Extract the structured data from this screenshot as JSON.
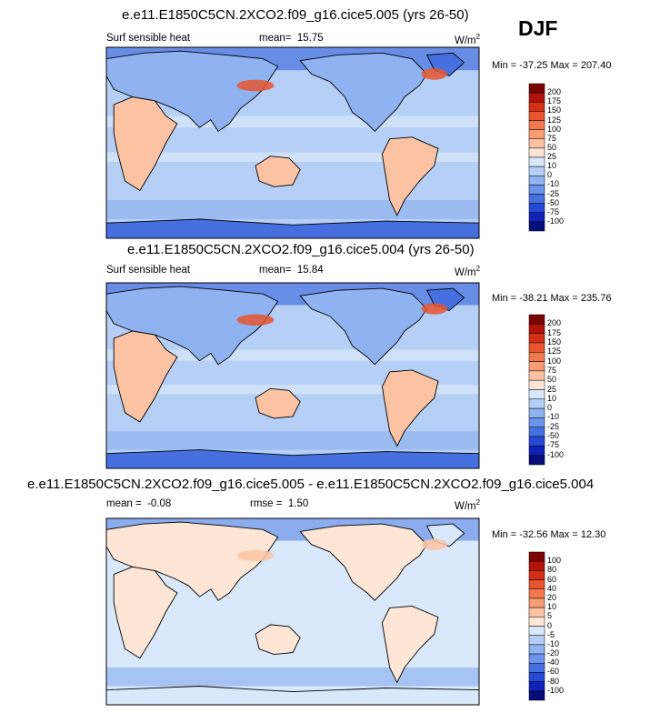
{
  "header": {
    "season": "DJF"
  },
  "chart_data": [
    {
      "type": "heatmap",
      "title": "e.e11.E1850C5CN.2XCO2.f09_g16.cice5.005 (yrs 26-50)",
      "field_label": "Surf sensible heat",
      "stat_label": "mean=",
      "stat_value": "15.75",
      "units": "W/m",
      "units_exp": "2",
      "min_max": "Min = -37.25 Max = 207.40",
      "colorbar": {
        "ticks": [
          "200",
          "175",
          "150",
          "125",
          "100",
          "75",
          "50",
          "25",
          "10",
          "0",
          "-10",
          "-25",
          "-50",
          "-75",
          "-100"
        ],
        "colors": [
          "#7a0403",
          "#b1120a",
          "#d42f14",
          "#e8552e",
          "#f3794d",
          "#f89c74",
          "#fbc3a3",
          "#fde6d5",
          "#d9e8fb",
          "#b6cff6",
          "#8eb3f0",
          "#6a93e9",
          "#4670e0",
          "#2548d6",
          "#0e22b8",
          "#040d7a"
        ]
      },
      "style": {
        "ocean": "#b6cff6",
        "land_base": "#fbc3a3",
        "highlight": "#e8552e",
        "cold": "#4670e0"
      }
    },
    {
      "type": "heatmap",
      "title": "e.e11.E1850C5CN.2XCO2.f09_g16.cice5.004 (yrs 26-50)",
      "field_label": "Surf sensible heat",
      "stat_label": "mean=",
      "stat_value": "15.84",
      "units": "W/m",
      "units_exp": "2",
      "min_max": "Min = -38.21 Max = 235.76",
      "colorbar": {
        "ticks": [
          "200",
          "175",
          "150",
          "125",
          "100",
          "75",
          "50",
          "25",
          "10",
          "0",
          "-10",
          "-25",
          "-50",
          "-75",
          "-100"
        ],
        "colors": [
          "#7a0403",
          "#b1120a",
          "#d42f14",
          "#e8552e",
          "#f3794d",
          "#f89c74",
          "#fbc3a3",
          "#fde6d5",
          "#d9e8fb",
          "#b6cff6",
          "#8eb3f0",
          "#6a93e9",
          "#4670e0",
          "#2548d6",
          "#0e22b8",
          "#040d7a"
        ]
      },
      "style": {
        "ocean": "#b6cff6",
        "land_base": "#fbc3a3",
        "highlight": "#e8552e",
        "cold": "#4670e0"
      }
    },
    {
      "type": "heatmap",
      "title": "e.e11.E1850C5CN.2XCO2.f09_g16.cice5.005 - e.e11.E1850C5CN.2XCO2.f09_g16.cice5.004",
      "field_label": "",
      "stat_label": "mean =",
      "stat_value": "-0.08",
      "stat2_label": "rmse =",
      "stat2_value": "1.50",
      "units": "W/m",
      "units_exp": "2",
      "min_max": "Min = -32.56 Max =  12.30",
      "colorbar": {
        "ticks": [
          "100",
          "80",
          "60",
          "40",
          "20",
          "10",
          "5",
          "0",
          "-5",
          "-10",
          "-20",
          "-40",
          "-60",
          "-80",
          "-100"
        ],
        "colors": [
          "#7a0403",
          "#b1120a",
          "#d42f14",
          "#e8552e",
          "#f3794d",
          "#f89c74",
          "#fbc3a3",
          "#fde6d5",
          "#d9e8fb",
          "#b6cff6",
          "#8eb3f0",
          "#6a93e9",
          "#4670e0",
          "#2548d6",
          "#0e22b8",
          "#040d7a"
        ]
      },
      "style": {
        "ocean": "#d9e8fb",
        "land_base": "#fde6d5",
        "highlight": "#fbc3a3",
        "cold": "#6a93e9"
      }
    }
  ]
}
